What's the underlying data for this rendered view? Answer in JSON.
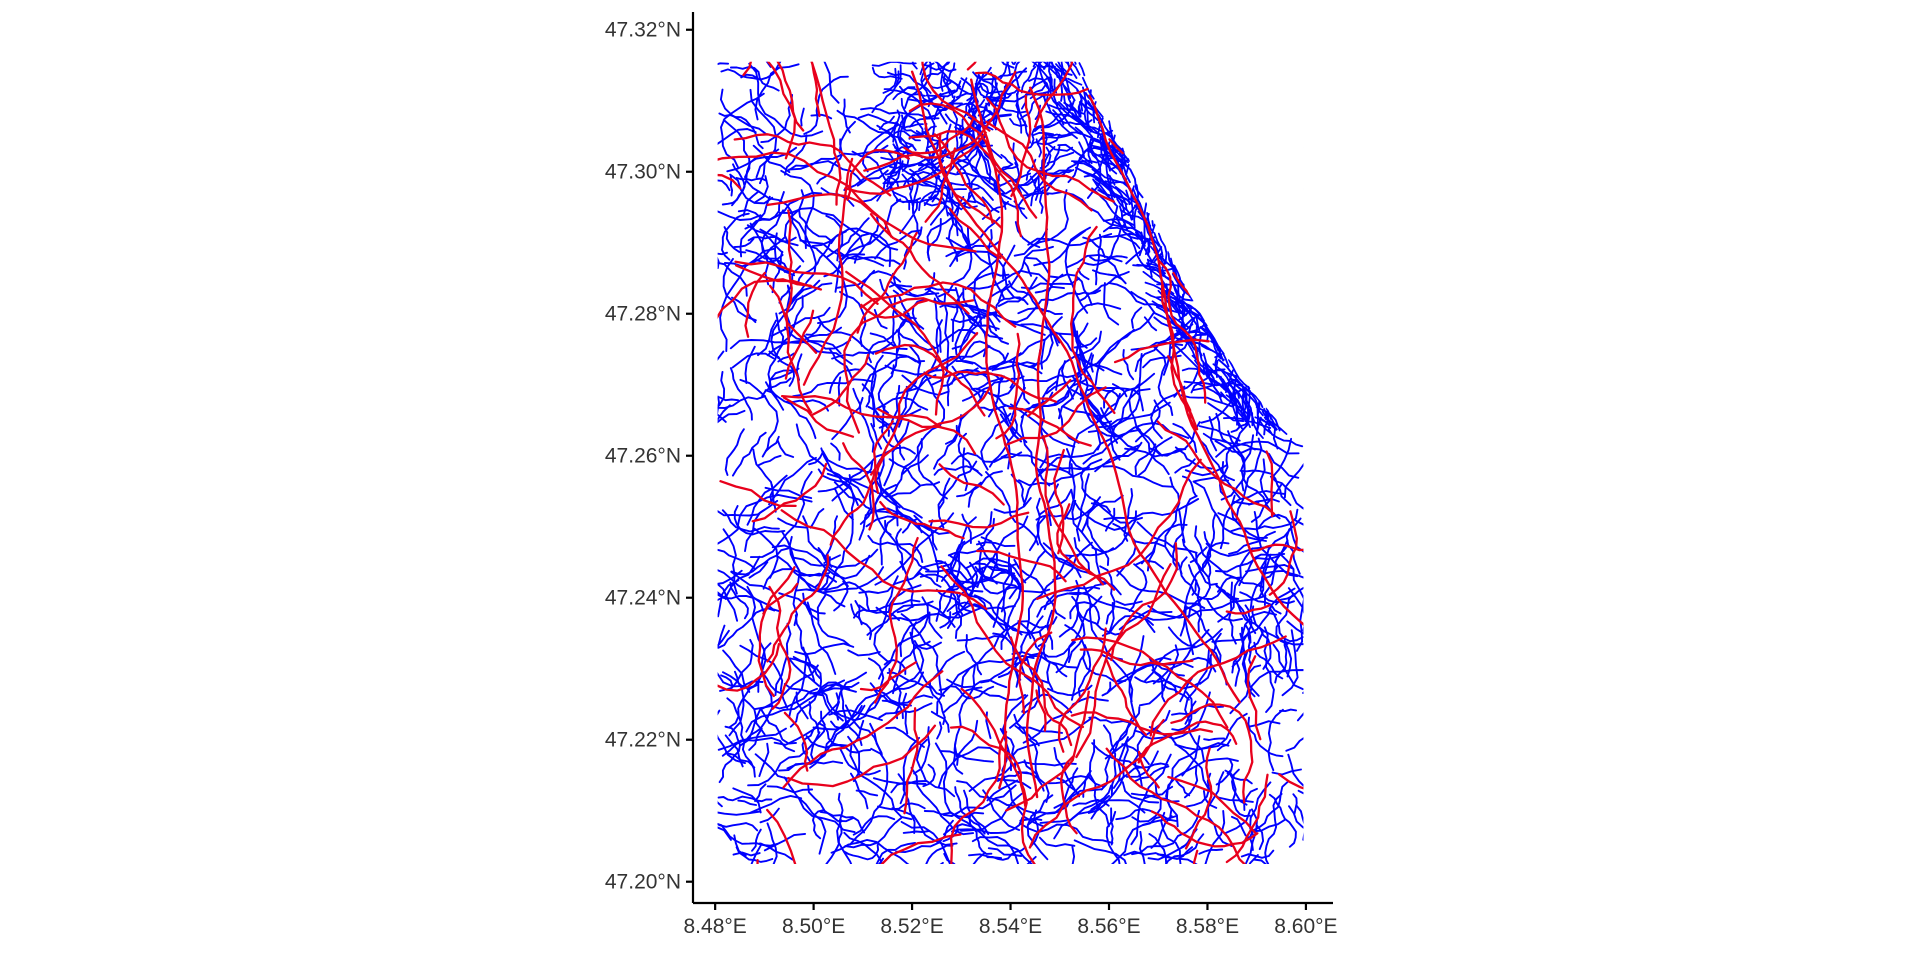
{
  "map": {
    "x_ticks": [
      "8.48°E",
      "8.50°E",
      "8.52°E",
      "8.54°E",
      "8.56°E",
      "8.58°E",
      "8.60°E"
    ],
    "y_ticks": [
      "47.32°N",
      "47.30°N",
      "47.28°N",
      "47.26°N",
      "47.24°N",
      "47.22°N",
      "47.20°N"
    ],
    "x_tick_values": [
      8.48,
      8.5,
      8.52,
      8.54,
      8.56,
      8.58,
      8.6
    ],
    "y_tick_values": [
      47.32,
      47.3,
      47.28,
      47.26,
      47.24,
      47.22,
      47.2
    ],
    "xlim": [
      8.4755,
      8.6055
    ],
    "ylim": [
      47.197,
      47.3225
    ],
    "data_extent": {
      "lon": [
        8.4805,
        8.5995
      ],
      "lat": [
        47.2025,
        47.3155
      ]
    },
    "lake_north_east": {
      "lon_start": 8.578,
      "lat_top": 47.3155,
      "lat_bottom": 47.2925
    },
    "lake_east": {
      "lat_top": 47.262,
      "lon_edge": 8.5995
    },
    "colors": {
      "minor_roads": "#0000ff",
      "major_roads": "#e8001c",
      "axis": "#000000",
      "tick_text": "#333333",
      "background": "#ffffff"
    }
  }
}
